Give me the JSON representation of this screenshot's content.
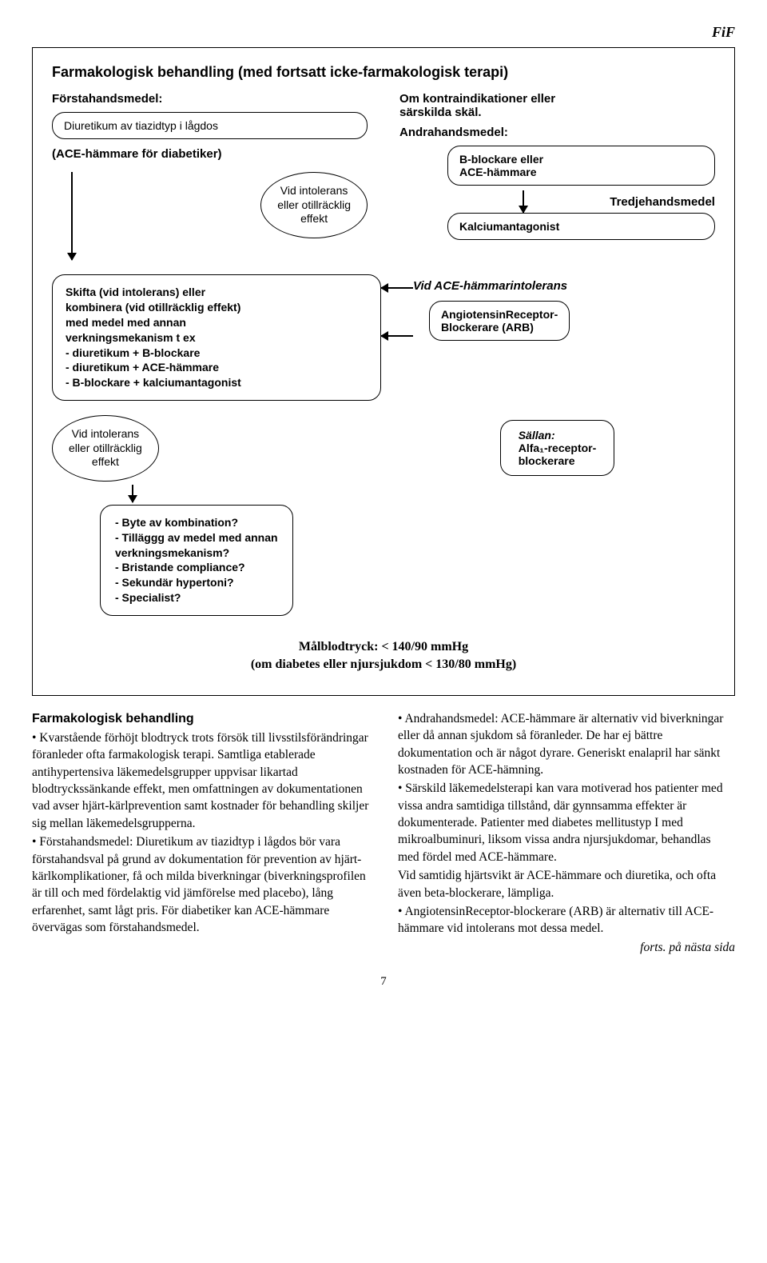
{
  "header_tag": "FiF",
  "title": "Farmakologisk behandling (med fortsatt icke-farmakologisk terapi)",
  "left": {
    "first_label": "Förstahandsmedel:",
    "first_box": "Diuretikum av tiazidtyp i lågdos",
    "ace_note": "(ACE-hämmare för diabetiker)",
    "intolerance_oval": "Vid intolerans\neller otillräcklig\neffekt"
  },
  "right": {
    "contra_label": "Om kontraindikationer eller\nsärskilda skäl.",
    "second_label": "Andrahandsmedel:",
    "second_box": "B-blockare eller\nACE-hämmare",
    "third_label": "Tredjehandsmedel",
    "third_box": "Kalciumantagonist"
  },
  "combine": {
    "lead": "Skifta (vid intolerans) eller\nkombinera (vid otillräcklig effekt)\nmed medel med annan\nverkningsmekanism t ex",
    "items": [
      "- diuretikum + B-blockare",
      "- diuretikum + ACE-hämmare",
      "- B-blockare + kalciumantagonist"
    ]
  },
  "ace_intol": {
    "label": "Vid ACE-hämmarintolerans",
    "box": "AngiotensinReceptor-\nBlockerare (ARB)"
  },
  "intolerance_oval2": "Vid intolerans\neller otillräcklig\neffekt",
  "rare": {
    "label": "Sällan:",
    "text": "Alfa₁-receptor-\nblockerare"
  },
  "questions": [
    "- Byte av kombination?",
    "- Tilläggg av medel med annan\n  verkningsmekanism?",
    "- Bristande compliance?",
    "- Sekundär hypertoni?",
    "- Specialist?"
  ],
  "target_bp": "Målblodtryck: < 140/90 mmHg\n(om diabetes eller njursjukdom < 130/80 mmHg)",
  "body": {
    "heading": "Farmakologisk behandling",
    "p1": "• Kvarstående förhöjt blodtryck trots försök till livsstilsförändringar föranleder ofta farmakologisk terapi. Samtliga etablerade antihypertensiva läkemedelsgrupper uppvisar likartad blodtryckssänkande effekt, men omfattningen av dokumentationen vad avser hjärt-kärlprevention samt kostnader för behandling skiljer sig mellan läkemedelsgrupperna.",
    "p2": "• Förstahandsmedel: Diuretikum av tiazidtyp i lågdos bör vara förstahandsval på grund av dokumentation för prevention av hjärt-kärlkomplikationer, få och milda biverkningar (biverkningsprofilen är till och med fördelaktig vid jämförelse med placebo), lång erfarenhet, samt lågt pris. För diabetiker kan ACE-hämmare övervägas som förstahandsmedel.",
    "p3": "• Andrahandsmedel: ACE-hämmare är alternativ vid biverkningar eller då annan sjukdom så föranleder. De har ej bättre dokumentation och är något dyrare. Generiskt enalapril har sänkt kostnaden för ACE-hämning.",
    "p4": "• Särskild läkemedelsterapi kan vara motiverad hos patienter med vissa andra samtidiga tillstånd, där gynnsamma effekter är dokumenterade. Patienter med diabetes mellitustyp I med mikroalbuminuri, liksom vissa andra njursjukdomar, behandlas med fördel med ACE-hämmare.",
    "p5": "Vid samtidig hjärtsvikt är ACE-hämmare och diuretika, och ofta även beta-blockerare, lämpliga.",
    "p6": "• AngiotensinReceptor-blockerare (ARB) är alternativ till ACE-hämmare vid intolerans mot dessa medel.",
    "cont": "forts. på nästa sida"
  },
  "page_number": "7",
  "colors": {
    "border": "#000000",
    "bg": "#ffffff",
    "text": "#000000"
  }
}
